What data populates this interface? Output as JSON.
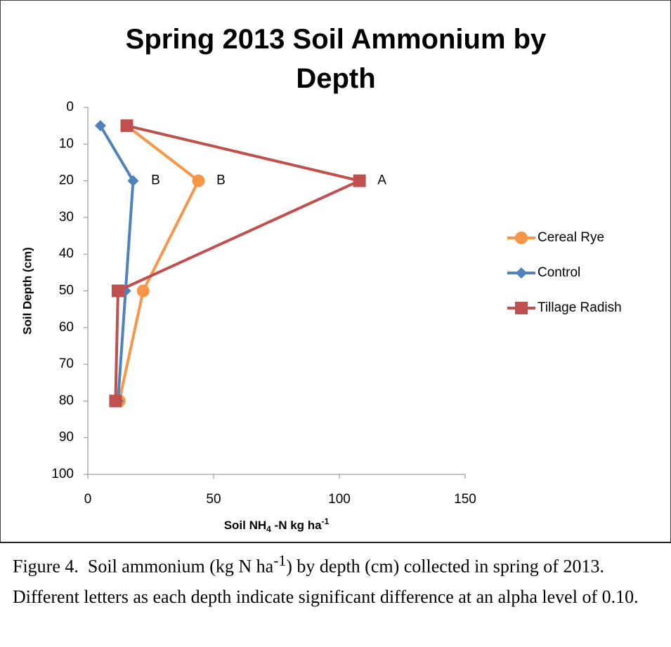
{
  "chart_data": {
    "type": "line",
    "title": "Spring 2013 Soil Ammonium by Depth",
    "xlabel": [
      "Soil NH",
      "4",
      " -N  kg ha",
      "-1"
    ],
    "ylabel": "Soil Depth (cm)",
    "xlim": [
      0,
      150
    ],
    "xticks": [
      0,
      50,
      100,
      150
    ],
    "ylim": [
      0,
      100
    ],
    "yticks": [
      0,
      10,
      20,
      30,
      40,
      50,
      60,
      70,
      80,
      90,
      100
    ],
    "y_reversed": true,
    "grid": false,
    "legend": "right",
    "series": [
      {
        "name": "Cereal Rye",
        "color": "#f79646",
        "marker": "circle",
        "x": [
          15.5,
          44,
          22,
          12.5
        ],
        "values": [
          5,
          20,
          50,
          80
        ],
        "annotation": "B"
      },
      {
        "name": "Control",
        "color": "#4f81bd",
        "marker": "diamond",
        "x": [
          5,
          18,
          15,
          12
        ],
        "values": [
          5,
          20,
          50,
          80
        ],
        "annotation": "B"
      },
      {
        "name": "Tillage Radish",
        "color": "#c0504d",
        "marker": "square",
        "x": [
          15.5,
          108,
          12,
          11
        ],
        "values": [
          5,
          20,
          50,
          80
        ],
        "annotation": "A"
      }
    ]
  },
  "caption": [
    "Figure 4.  Soil ammonium (kg N ha",
    "-1",
    ") by depth (cm) collected in spring of 2013.  Different letters as each depth indicate significant difference at an alpha level of 0.10."
  ]
}
